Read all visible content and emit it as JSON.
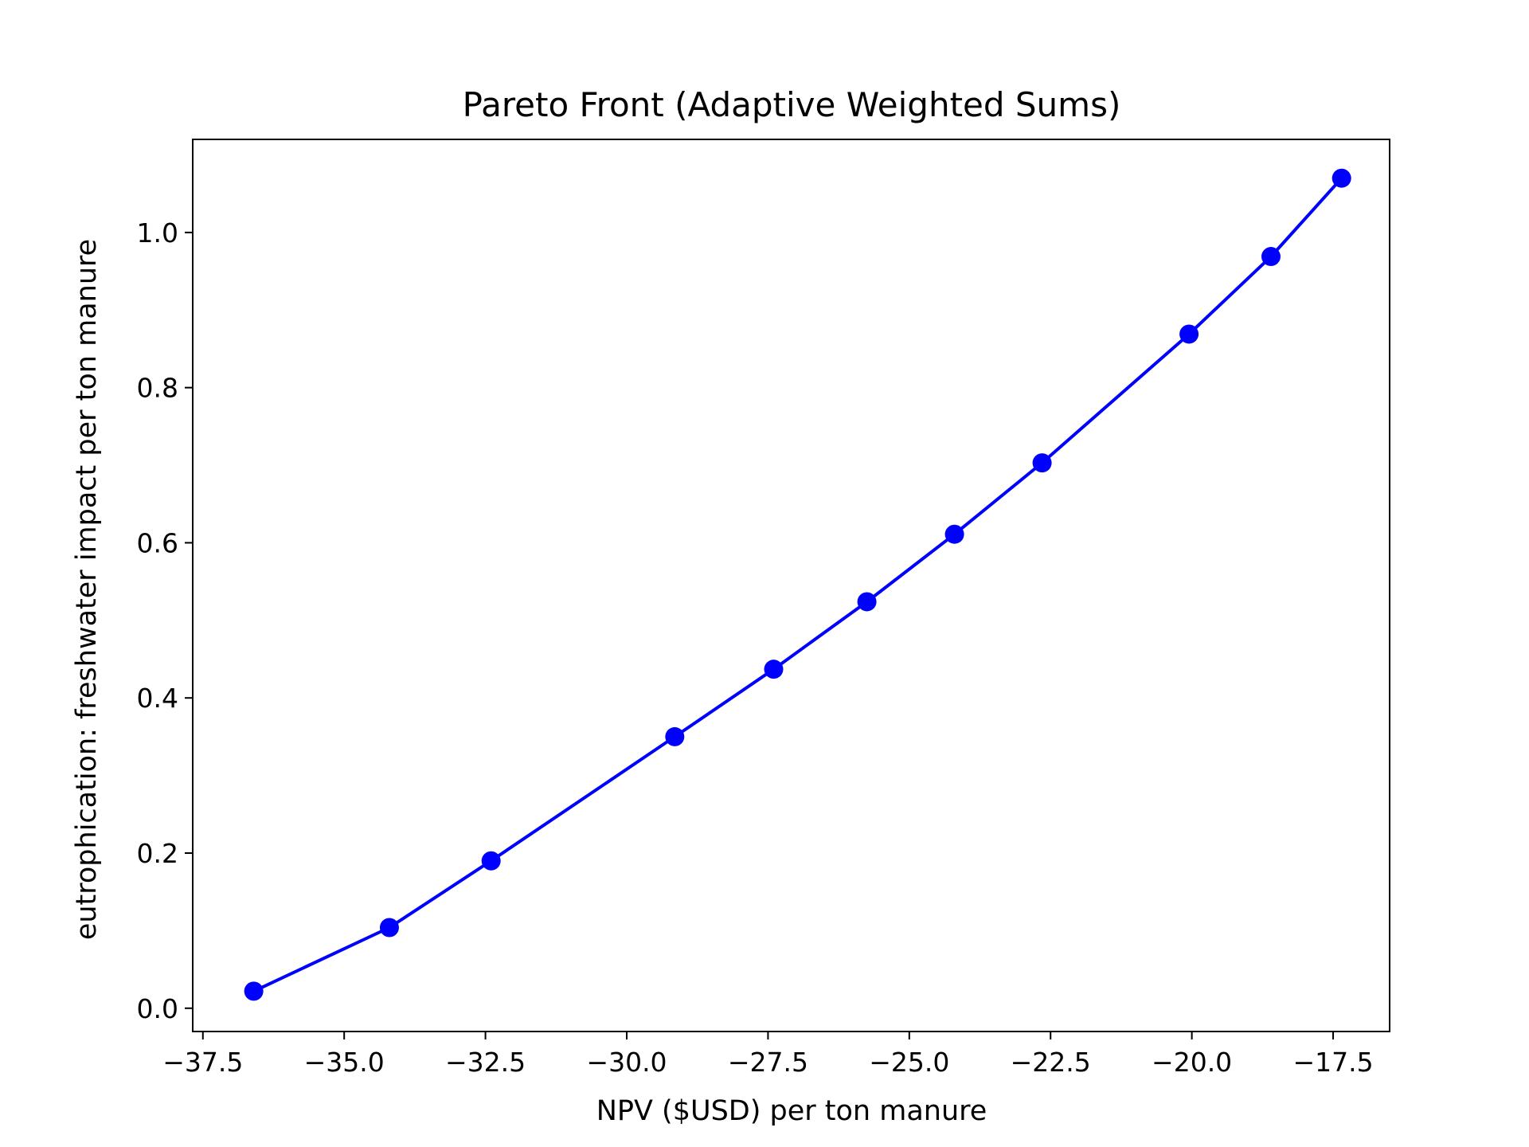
{
  "chart_data": {
    "type": "line",
    "title": "Pareto Front (Adaptive Weighted Sums)",
    "xlabel": "NPV ($USD) per ton manure",
    "ylabel": "eutrophication: freshwater impact per ton manure",
    "xlim": [
      -37.68,
      -16.5
    ],
    "ylim": [
      -0.03,
      1.12
    ],
    "xticks": [
      -37.5,
      -35.0,
      -32.5,
      -30.0,
      -27.5,
      -25.0,
      -22.5,
      -20.0,
      -17.5
    ],
    "xtick_labels": [
      "−37.5",
      "−35.0",
      "−32.5",
      "−30.0",
      "−27.5",
      "−25.0",
      "−22.5",
      "−20.0",
      "−17.5"
    ],
    "yticks": [
      0.0,
      0.2,
      0.4,
      0.6,
      0.8,
      1.0
    ],
    "ytick_labels": [
      "0.0",
      "0.2",
      "0.4",
      "0.6",
      "0.8",
      "1.0"
    ],
    "grid": false,
    "series": [
      {
        "color": "#0000ff",
        "marker": "circle",
        "x": [
          -36.6,
          -34.2,
          -32.4,
          -29.15,
          -27.4,
          -25.75,
          -24.2,
          -22.65,
          -20.05,
          -18.6,
          -17.35
        ],
        "y": [
          0.022,
          0.104,
          0.19,
          0.35,
          0.437,
          0.524,
          0.611,
          0.703,
          0.869,
          0.969,
          1.07
        ]
      }
    ]
  }
}
